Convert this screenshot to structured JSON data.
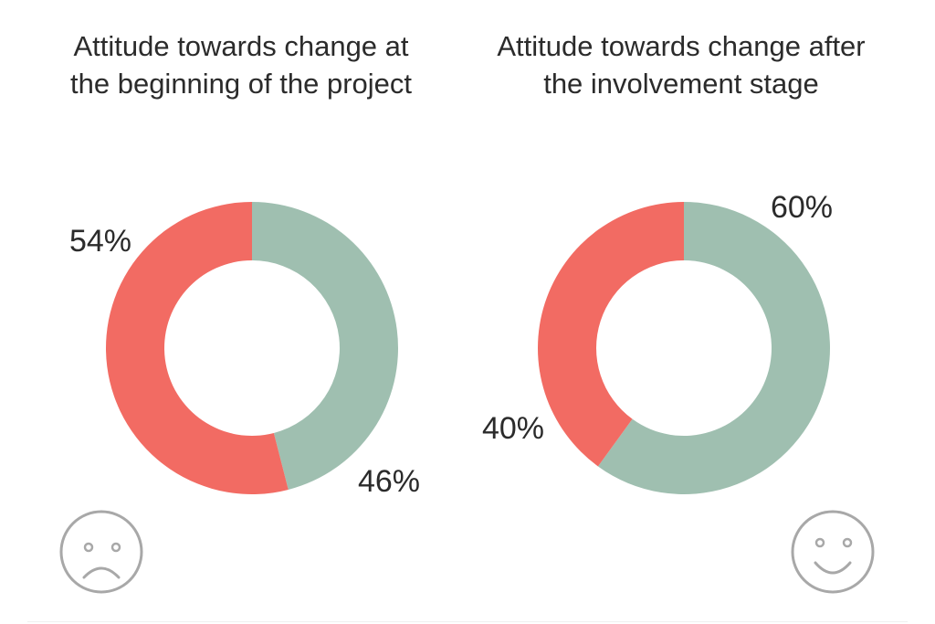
{
  "chart_data": [
    {
      "type": "pie",
      "title": "Attitude towards change at\nthe beginning of the project",
      "values": [
        46,
        54
      ],
      "labels": [
        "46%",
        "54%"
      ],
      "colors": [
        "#9fbfb0",
        "#f26b63"
      ]
    },
    {
      "type": "pie",
      "title": "Attitude towards change after\nthe involvement stage",
      "values": [
        60,
        40
      ],
      "labels": [
        "60%",
        "40%"
      ],
      "colors": [
        "#9fbfb0",
        "#f26b63"
      ]
    }
  ],
  "icons": {
    "left": "sad-face-icon",
    "right": "happy-face-icon",
    "color": "#a8a8a8"
  }
}
